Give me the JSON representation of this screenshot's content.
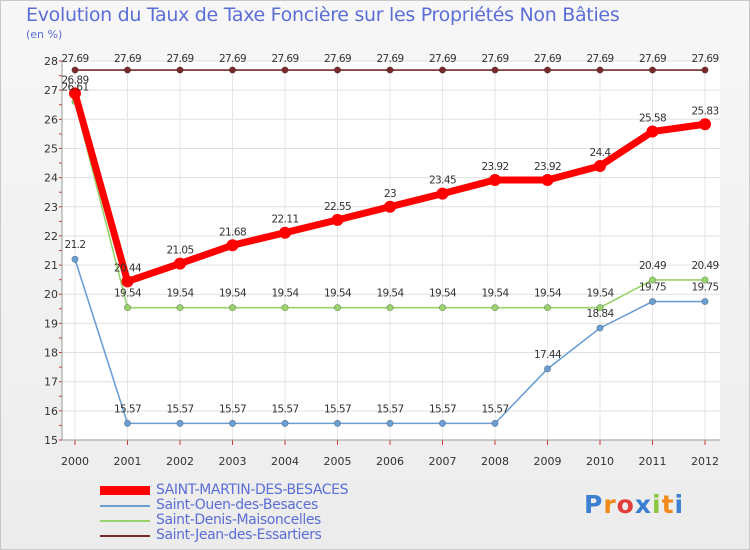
{
  "chart_data": {
    "type": "line",
    "title": "Evolution du Taux de Taxe Foncière sur les Propriétés Non Bâties",
    "subtitle": "(en %)",
    "categories": [
      "2000",
      "2001",
      "2002",
      "2003",
      "2004",
      "2005",
      "2006",
      "2007",
      "2008",
      "2009",
      "2010",
      "2011",
      "2012"
    ],
    "ylim": [
      15,
      28
    ],
    "yticks": [
      15,
      16,
      17,
      18,
      19,
      20,
      21,
      22,
      23,
      24,
      25,
      26,
      27,
      28
    ],
    "series": [
      {
        "name": "SAINT-MARTIN-DES-BESACES",
        "color": "#ff0000",
        "values": [
          26.89,
          20.44,
          21.05,
          21.68,
          22.11,
          22.55,
          23,
          23.45,
          23.92,
          23.92,
          24.4,
          25.58,
          25.83
        ],
        "labels": [
          "26.89",
          "20.44",
          "21.05",
          "21.68",
          "22.11",
          "22.55",
          "23",
          "23.45",
          "23.92",
          "23.92",
          "24.4",
          "25.58",
          "25.83"
        ]
      },
      {
        "name": "Saint-Ouen-des-Besaces",
        "color": "#6b9fd4",
        "values": [
          21.2,
          15.57,
          15.57,
          15.57,
          15.57,
          15.57,
          15.57,
          15.57,
          15.57,
          17.44,
          18.84,
          19.75,
          19.75
        ],
        "labels": [
          "21.2",
          "15.57",
          "15.57",
          "15.57",
          "15.57",
          "15.57",
          "15.57",
          "15.57",
          "15.57",
          "17.44",
          "18.84",
          "19.75",
          "19.75"
        ]
      },
      {
        "name": "Saint-Denis-Maisoncelles",
        "color": "#99d36b",
        "values": [
          26.61,
          19.54,
          19.54,
          19.54,
          19.54,
          19.54,
          19.54,
          19.54,
          19.54,
          19.54,
          19.54,
          20.49,
          20.49
        ],
        "labels": [
          "26.61",
          "19.54",
          "19.54",
          "19.54",
          "19.54",
          "19.54",
          "19.54",
          "19.54",
          "19.54",
          "19.54",
          "19.54",
          "20.49",
          "20.49"
        ]
      },
      {
        "name": "Saint-Jean-des-Essartiers",
        "color": "#7a2a2a",
        "values": [
          27.69,
          27.69,
          27.69,
          27.69,
          27.69,
          27.69,
          27.69,
          27.69,
          27.69,
          27.69,
          27.69,
          27.69,
          27.69
        ],
        "labels": [
          "27.69",
          "27.69",
          "27.69",
          "27.69",
          "27.69",
          "27.69",
          "27.69",
          "27.69",
          "27.69",
          "27.69",
          "27.69",
          "27.69",
          "27.69"
        ]
      }
    ]
  },
  "logo": {
    "text": "Proxiti",
    "letters": [
      "P",
      "r",
      "o",
      "x",
      "i",
      "t",
      "i"
    ],
    "colors": [
      "#3a7fd0",
      "#f08a1c",
      "#e23c3c",
      "#3a7fd0",
      "#8cc63f",
      "#f08a1c",
      "#3a7fd0"
    ]
  }
}
